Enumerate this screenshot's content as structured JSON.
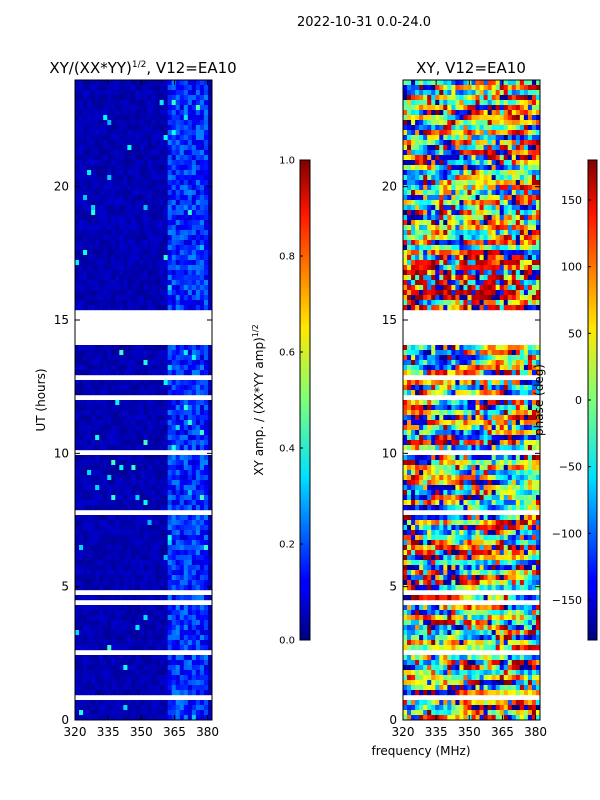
{
  "figure": {
    "suptitle": "2022-10-31 0.0-24.0",
    "xlabel": "frequency (MHz)"
  },
  "chart_data": [
    {
      "type": "heatmap",
      "title_main": "XY/(XX*YY)",
      "title_sup": "1/2",
      "title_tail": ", V12=EA10",
      "ylabel": "UT (hours)",
      "xlim": [
        320,
        382
      ],
      "ylim": [
        0,
        24
      ],
      "xticks": [
        320,
        335,
        350,
        365,
        380
      ],
      "yticks": [
        0,
        5,
        10,
        15,
        20
      ],
      "colorbar": {
        "label_main": "XY amp. / (XX*YY amp)",
        "label_sup": "1/2",
        "range": [
          0.0,
          1.0
        ],
        "ticks": [
          "0.0",
          "0.2",
          "0.4",
          "0.6",
          "0.8",
          "1.0"
        ],
        "colormap": "jet"
      },
      "data_gap_hours": [
        [
          14.2,
          15.3
        ]
      ]
    },
    {
      "type": "heatmap",
      "title": "XY, V12=EA10",
      "ylabel": "",
      "xlim": [
        320,
        382
      ],
      "ylim": [
        0,
        24
      ],
      "xticks": [
        320,
        335,
        350,
        365,
        380
      ],
      "yticks": [
        0,
        5,
        10,
        15,
        20
      ],
      "colorbar": {
        "label": "phase (deg)",
        "range": [
          -180,
          180
        ],
        "ticks": [
          "150",
          "100",
          "50",
          "0",
          "−50",
          "−100",
          "−150"
        ],
        "colormap": "jet"
      },
      "data_gap_hours": [
        [
          14.2,
          15.3
        ]
      ]
    }
  ]
}
